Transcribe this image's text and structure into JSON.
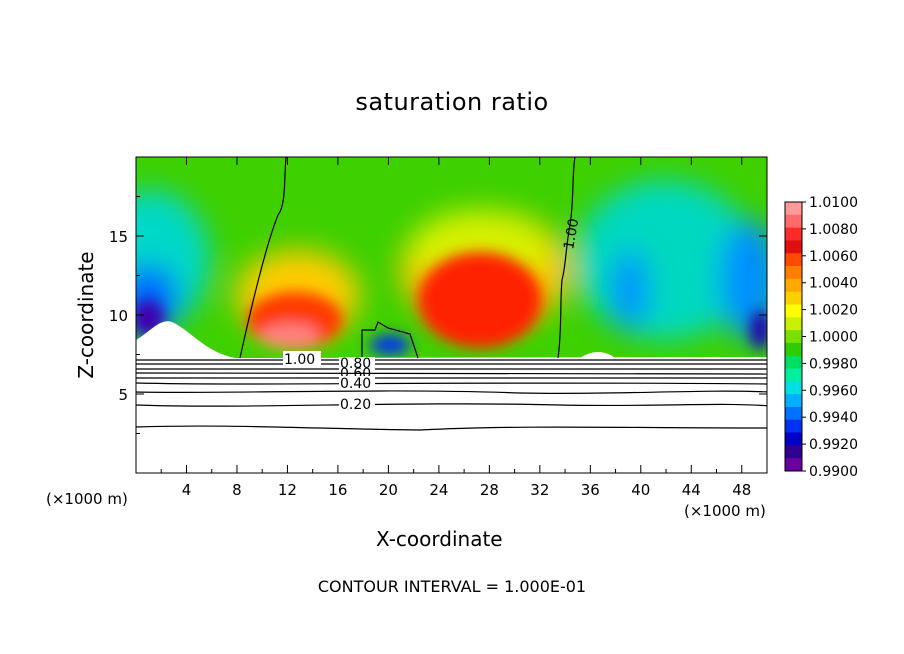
{
  "chart_data": {
    "type": "heatmap",
    "title": "saturation ratio",
    "xlabel": "X-coordinate",
    "ylabel": "Z-coordinate",
    "x_unit": "(×1000 m)",
    "footer": "CONTOUR INTERVAL = 1.000E-01",
    "xlim": [
      0,
      50
    ],
    "ylim": [
      0,
      20
    ],
    "x_ticks": [
      4,
      8,
      12,
      16,
      20,
      24,
      28,
      32,
      36,
      40,
      44,
      48
    ],
    "y_ticks": [
      5,
      10,
      15
    ],
    "colorbar": {
      "range": [
        0.99,
        1.01
      ],
      "labels": [
        "1.0100",
        "1.0080",
        "1.0060",
        "1.0040",
        "1.0020",
        "1.0000",
        "0.9980",
        "0.9960",
        "0.9940",
        "0.9920",
        "0.9900"
      ],
      "colors": [
        "#ff9a9a",
        "#ff6a6a",
        "#ff2a2a",
        "#e01010",
        "#ff4a00",
        "#ff8000",
        "#ffa800",
        "#ffd000",
        "#ffff00",
        "#c8f000",
        "#7ae000",
        "#2ecc00",
        "#00e060",
        "#00f0a0",
        "#00e0e0",
        "#00b0ff",
        "#0070ff",
        "#0030f0",
        "#0000c8",
        "#300090",
        "#6a00a0"
      ]
    },
    "contour_labels": [
      "1.00",
      "0.80",
      "0.60",
      "0.40",
      "0.20",
      "1.00"
    ],
    "cloud_cores": [
      {
        "x": 12,
        "z": 9.5,
        "peak": 1.006
      },
      {
        "x": 27,
        "z": 11.5,
        "peak": 1.008
      },
      {
        "x": 19,
        "z": 8.5,
        "peak": 0.994
      },
      {
        "x": 4,
        "z": 12,
        "peak": 0.995
      },
      {
        "x": 40,
        "z": 12,
        "peak": 0.995
      },
      {
        "x": 48,
        "z": 10,
        "peak": 0.994
      }
    ]
  }
}
